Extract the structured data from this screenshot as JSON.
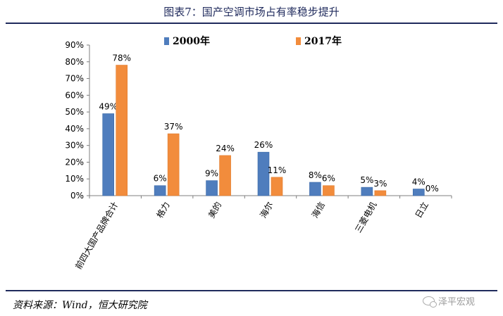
{
  "chart_data": {
    "type": "bar",
    "title": "图表7：国产空调市场占有率稳步提升",
    "categories": [
      "前四大国产品牌合计",
      "格力",
      "美的",
      "海尔",
      "海信",
      "三菱电机",
      "日立"
    ],
    "series": [
      {
        "name": "2000年",
        "values": [
          49,
          6,
          9,
          26,
          8,
          5,
          4
        ],
        "labels": [
          "49%",
          "6%",
          "9%",
          "26%",
          "8%",
          "5%",
          "4%"
        ],
        "color": "#4f7dbd"
      },
      {
        "name": "2017年",
        "values": [
          78,
          37,
          24,
          11,
          6,
          3,
          0
        ],
        "labels": [
          "78%",
          "37%",
          "24%",
          "11%",
          "6%",
          "3%",
          "0%"
        ],
        "color": "#f28c3c"
      }
    ],
    "ylim": [
      0,
      90
    ],
    "yticks": [
      "0%",
      "10%",
      "20%",
      "30%",
      "40%",
      "50%",
      "60%",
      "70%",
      "80%",
      "90%"
    ],
    "grid": false,
    "legend": "top"
  },
  "source_text": "资料来源：Wind，恒大研究院",
  "watermark_text": "泽平宏观"
}
